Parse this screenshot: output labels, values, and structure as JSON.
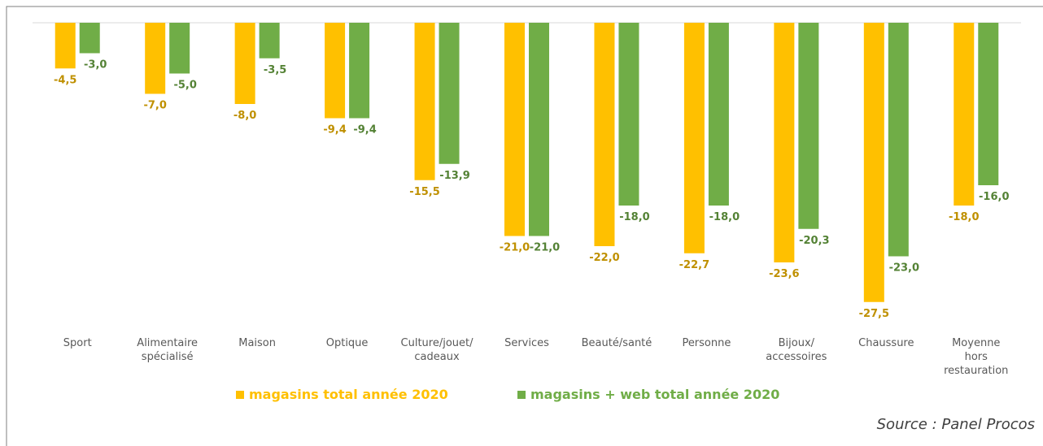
{
  "chart_data": {
    "type": "bar",
    "categories": [
      "Sport",
      "Alimentaire\nspécialisé",
      "Maison",
      "Optique",
      "Culture/jouet/\ncadeaux",
      "Services",
      "Beauté/santé",
      "Personne",
      "Bijoux/\naccessoires",
      "Chaussure",
      "Moyenne\nhors\nrestauration"
    ],
    "series": [
      {
        "name": "magasins total année 2020",
        "color": "#ffc000",
        "label_color": "#bf9000",
        "values": [
          -4.5,
          -7.0,
          -8.0,
          -9.4,
          -15.5,
          -21.0,
          -22.0,
          -22.7,
          -23.6,
          -27.5,
          -18.0
        ],
        "value_labels": [
          "-4,5",
          "-7,0",
          "-8,0",
          "-9,4",
          "-15,5",
          "-21,0",
          "-22,0",
          "-22,7",
          "-23,6",
          "-27,5",
          "-18,0"
        ]
      },
      {
        "name": "magasins + web total année 2020",
        "color": "#70ad47",
        "label_color": "#548235",
        "values": [
          -3.0,
          -5.0,
          -3.5,
          -9.4,
          -13.9,
          -21.0,
          -18.0,
          -18.0,
          -20.3,
          -23.0,
          -16.0
        ],
        "value_labels": [
          "-3,0",
          "-5,0",
          "-3,5",
          "-9,4",
          "-13,9",
          "-21,0",
          "-18,0",
          "-18,0",
          "-20,3",
          "-23,0",
          "-16,0"
        ]
      }
    ],
    "ylim": [
      -30,
      0
    ],
    "source": "Source : Panel Procos"
  }
}
